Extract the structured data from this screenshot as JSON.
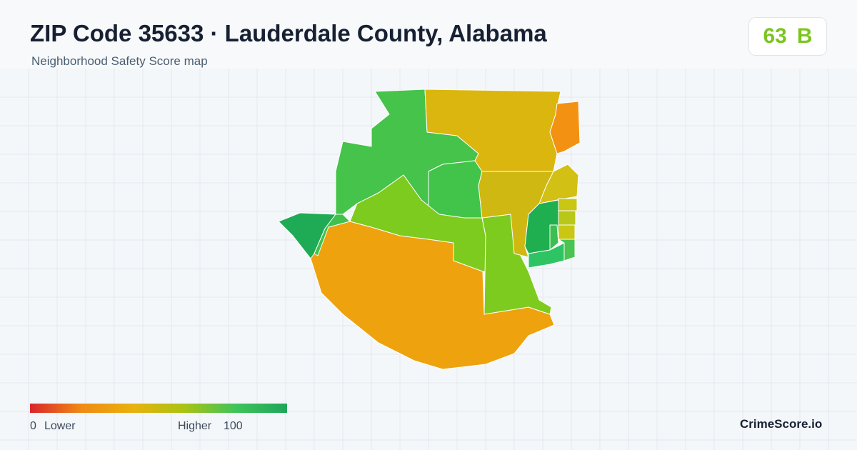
{
  "header": {
    "title": "ZIP Code 35633 · Lauderdale County, Alabama",
    "subtitle": "Neighborhood Safety Score map"
  },
  "score": {
    "value": 63,
    "grade": "B"
  },
  "legend": {
    "min": 0,
    "min_label": "Lower",
    "max_label": "Higher",
    "max": 100
  },
  "brand": "CrimeScore.io"
}
